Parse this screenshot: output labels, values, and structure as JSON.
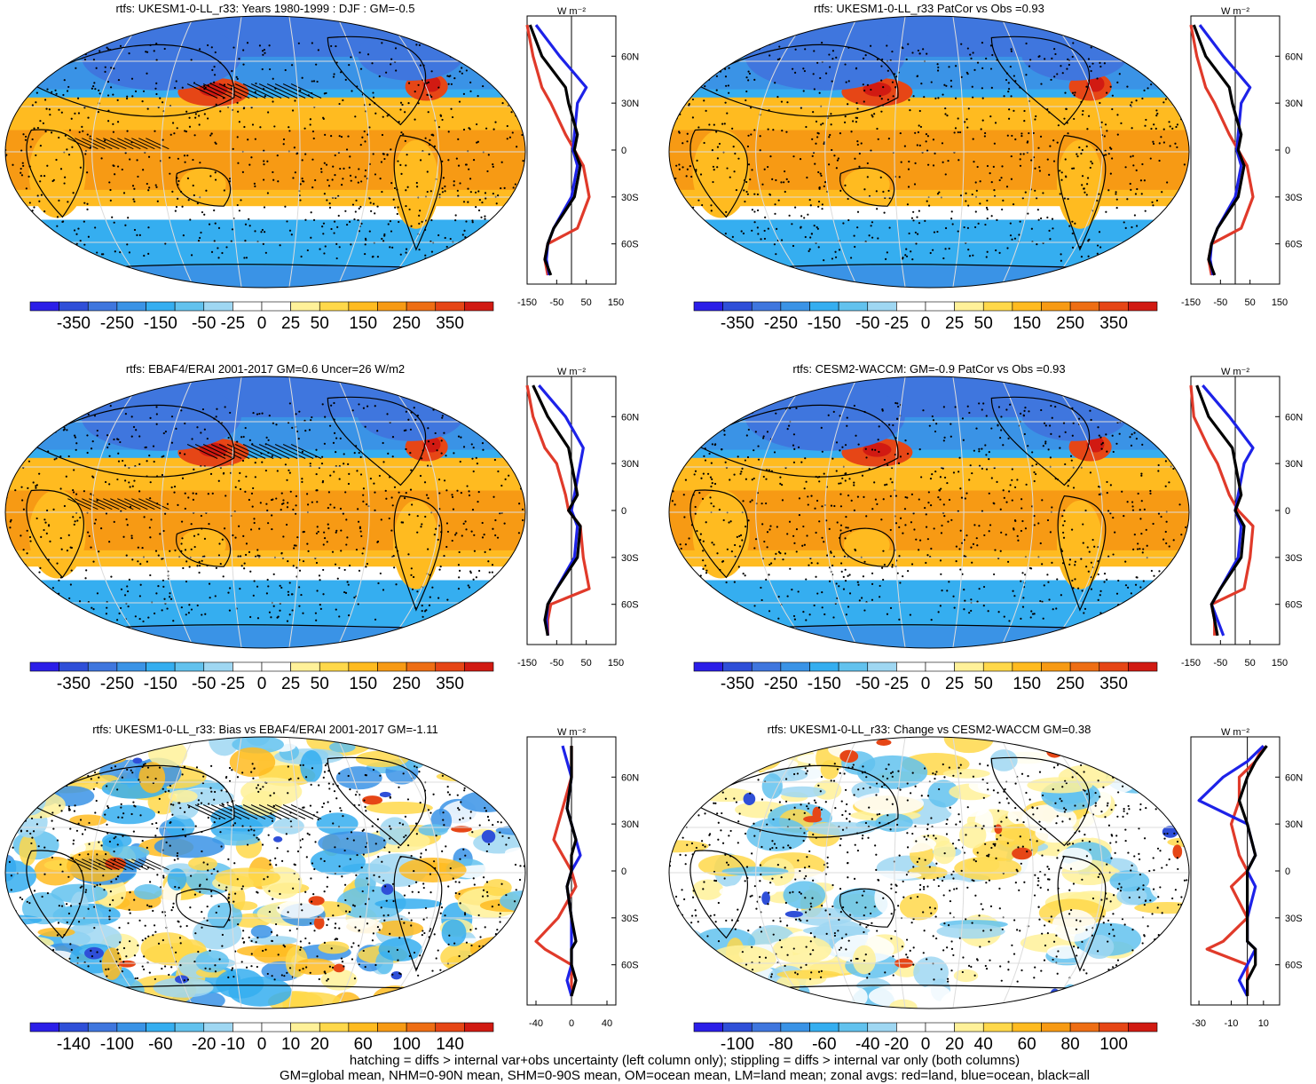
{
  "colors": {
    "scale": [
      "#2b1ee8",
      "#2f4fd8",
      "#3f76de",
      "#3a93e6",
      "#35aef0",
      "#62c2ee",
      "#9fd7f2",
      "#ffffff",
      "#ffffff",
      "#fff199",
      "#ffd84a",
      "#ffbb20",
      "#f79a14",
      "#ee6e14",
      "#e64616",
      "#d11a12"
    ],
    "land": "#e03a2a",
    "ocean": "#1d22e8",
    "all": "#000000"
  },
  "panels": [
    {
      "title": "rtfs: UKESM1-0-LL_r33: Years 1980-1999 : DJF : GM=-0.5",
      "cb_labels": [
        "-350",
        "-250",
        "-150",
        "-50",
        "-25",
        "0",
        "25",
        "50",
        "150",
        "250",
        "350"
      ],
      "zonal_xticks": [
        "-150",
        "-50",
        "50",
        "150"
      ],
      "zonal_xlim": [
        -150,
        150
      ],
      "zonal_yticks": [
        "60N",
        "30N",
        "0",
        "30S",
        "60S"
      ],
      "units": "W m⁻²",
      "hatching": true,
      "style": "mean"
    },
    {
      "title": "rtfs: UKESM1-0-LL_r33 PatCor vs Obs =0.93",
      "cb_labels": [
        "-350",
        "-250",
        "-150",
        "-50",
        "-25",
        "0",
        "25",
        "50",
        "150",
        "250",
        "350"
      ],
      "zonal_xticks": [
        "-150",
        "-50",
        "50",
        "150"
      ],
      "zonal_xlim": [
        -150,
        150
      ],
      "zonal_yticks": [
        "60N",
        "30N",
        "0",
        "30S",
        "60S"
      ],
      "units": "W m⁻²",
      "hatching": false,
      "style": "mean"
    },
    {
      "title": "rtfs: EBAF4/ERAI 2001-2017 GM=0.6 Uncer=26 W/m2",
      "cb_labels": [
        "-350",
        "-250",
        "-150",
        "-50",
        "-25",
        "0",
        "25",
        "50",
        "150",
        "250",
        "350"
      ],
      "zonal_xticks": [
        "-150",
        "-50",
        "50",
        "150"
      ],
      "zonal_xlim": [
        -150,
        150
      ],
      "zonal_yticks": [
        "60N",
        "30N",
        "0",
        "30S",
        "60S"
      ],
      "units": "W m⁻²",
      "hatching": true,
      "style": "mean"
    },
    {
      "title": "rtfs: CESM2-WACCM: GM=-0.9 PatCor vs Obs =0.93",
      "cb_labels": [
        "-350",
        "-250",
        "-150",
        "-50",
        "-25",
        "0",
        "25",
        "50",
        "150",
        "250",
        "350"
      ],
      "zonal_xticks": [
        "-150",
        "-50",
        "50",
        "150"
      ],
      "zonal_xlim": [
        -150,
        150
      ],
      "zonal_yticks": [
        "60N",
        "30N",
        "0",
        "30S",
        "60S"
      ],
      "units": "W m⁻²",
      "hatching": false,
      "style": "mean"
    },
    {
      "title": "rtfs: UKESM1-0-LL_r33: Bias vs EBAF4/ERAI 2001-2017 GM=-1.11",
      "cb_labels": [
        "-140",
        "-100",
        "-60",
        "-20",
        "-10",
        "0",
        "10",
        "20",
        "60",
        "100",
        "140"
      ],
      "zonal_xticks": [
        "-40",
        "0",
        "40"
      ],
      "zonal_xlim": [
        -50,
        50
      ],
      "zonal_yticks": [
        "60N",
        "30N",
        "0",
        "30S",
        "60S"
      ],
      "units": "W m⁻²",
      "hatching": true,
      "style": "diff"
    },
    {
      "title": "rtfs: UKESM1-0-LL_r33: Change vs CESM2-WACCM GM=0.38",
      "cb_labels": [
        "-100",
        "-80",
        "-60",
        "-40",
        "-20",
        "0",
        "20",
        "40",
        "60",
        "80",
        "100"
      ],
      "zonal_xticks": [
        "-30",
        "-10",
        "10"
      ],
      "zonal_xlim": [
        -35,
        20
      ],
      "zonal_yticks": [
        "60N",
        "30N",
        "0",
        "30S",
        "60S"
      ],
      "units": "W m⁻²",
      "hatching": false,
      "style": "change"
    }
  ],
  "footer": {
    "line1": "hatching = diffs > internal var+obs uncertainty (left column only); stippling = diffs > internal var only (both columns)",
    "line2": "GM=global mean, NHM=0-90N mean, SHM=0-90S mean, OM=ocean mean, LM=land mean; zonal avgs: red=land, blue=ocean, black=all"
  },
  "chart_data": [
    {
      "type": "heatmap",
      "title": "rtfs: UKESM1-0-LL_r33: Years 1980-1999 : DJF : GM=-0.5",
      "colorbar": [
        -350,
        -250,
        -150,
        -50,
        -25,
        0,
        25,
        50,
        150,
        250,
        350
      ],
      "zonal_mean": {
        "lat": [
          80,
          60,
          40,
          30,
          10,
          0,
          -10,
          -30,
          -50,
          -60,
          -70,
          -80
        ],
        "all": [
          -140,
          -100,
          -20,
          -10,
          20,
          10,
          30,
          10,
          -60,
          -80,
          -90,
          -70
        ],
        "land": [
          -150,
          -130,
          -100,
          -70,
          -20,
          10,
          40,
          60,
          20,
          -80,
          -90,
          -80
        ],
        "ocean": [
          -120,
          -40,
          50,
          20,
          10,
          5,
          20,
          0,
          -60,
          -80,
          -85,
          -75
        ]
      }
    },
    {
      "type": "heatmap",
      "title": "rtfs: UKESM1-0-LL_r33 PatCor vs Obs =0.93",
      "colorbar": [
        -350,
        -250,
        -150,
        -50,
        -25,
        0,
        25,
        50,
        150,
        250,
        350
      ],
      "zonal_mean": {
        "lat": [
          80,
          60,
          40,
          30,
          10,
          0,
          -10,
          -30,
          -50,
          -60,
          -70,
          -80
        ],
        "all": [
          -140,
          -100,
          -20,
          -10,
          20,
          10,
          30,
          10,
          -60,
          -80,
          -90,
          -70
        ],
        "land": [
          -150,
          -130,
          -100,
          -70,
          -20,
          10,
          40,
          60,
          20,
          -80,
          -90,
          -80
        ],
        "ocean": [
          -120,
          -40,
          50,
          20,
          10,
          5,
          20,
          0,
          -60,
          -80,
          -85,
          -75
        ]
      }
    },
    {
      "type": "heatmap",
      "title": "rtfs: EBAF4/ERAI 2001-2017 GM=0.6 Uncer=26 W/m2",
      "colorbar": [
        -350,
        -250,
        -150,
        -50,
        -25,
        0,
        25,
        50,
        150,
        250,
        350
      ],
      "zonal_mean": {
        "lat": [
          80,
          60,
          40,
          30,
          10,
          0,
          -10,
          -30,
          -50,
          -60,
          -70,
          -80
        ],
        "all": [
          -130,
          -80,
          -10,
          0,
          20,
          -10,
          30,
          20,
          -50,
          -80,
          -90,
          -80
        ],
        "land": [
          -150,
          -130,
          -90,
          -50,
          -20,
          -10,
          30,
          40,
          60,
          -70,
          -80,
          -80
        ],
        "ocean": [
          -110,
          -20,
          40,
          30,
          10,
          0,
          20,
          10,
          -50,
          -80,
          -85,
          -80
        ]
      }
    },
    {
      "type": "heatmap",
      "title": "rtfs: CESM2-WACCM: GM=-0.9 PatCor vs Obs =0.93",
      "colorbar": [
        -350,
        -250,
        -150,
        -50,
        -25,
        0,
        25,
        50,
        150,
        250,
        350
      ],
      "zonal_mean": {
        "lat": [
          80,
          60,
          40,
          30,
          10,
          0,
          -10,
          -30,
          -50,
          -60,
          -70,
          -80
        ],
        "all": [
          -130,
          -90,
          -10,
          0,
          20,
          0,
          30,
          20,
          -50,
          -80,
          -70,
          -60
        ],
        "land": [
          -150,
          -140,
          -90,
          -60,
          -20,
          10,
          60,
          50,
          30,
          -80,
          -70,
          -70
        ],
        "ocean": [
          -110,
          -20,
          60,
          30,
          10,
          0,
          20,
          10,
          -50,
          -80,
          -60,
          -40
        ]
      }
    },
    {
      "type": "heatmap",
      "title": "rtfs: UKESM1-0-LL_r33: Bias vs EBAF4/ERAI 2001-2017 GM=-1.11",
      "colorbar": [
        -140,
        -100,
        -60,
        -20,
        -10,
        0,
        10,
        20,
        60,
        100,
        140
      ],
      "zonal_mean": {
        "lat": [
          80,
          60,
          40,
          20,
          10,
          0,
          -10,
          -30,
          -45,
          -50,
          -60,
          -70,
          -80
        ],
        "all": [
          0,
          0,
          -5,
          5,
          0,
          0,
          -5,
          0,
          5,
          0,
          0,
          5,
          0
        ],
        "land": [
          0,
          0,
          -10,
          -20,
          -10,
          0,
          5,
          -15,
          -40,
          -30,
          0,
          0,
          0
        ],
        "ocean": [
          -10,
          0,
          -5,
          5,
          10,
          0,
          -5,
          0,
          0,
          0,
          0,
          -5,
          0
        ]
      }
    },
    {
      "type": "heatmap",
      "title": "rtfs: UKESM1-0-LL_r33: Change vs CESM2-WACCM GM=0.38",
      "colorbar": [
        -100,
        -80,
        -60,
        -40,
        -20,
        0,
        20,
        40,
        60,
        80,
        100
      ],
      "zonal_mean": {
        "lat": [
          80,
          70,
          60,
          45,
          30,
          10,
          0,
          -10,
          -30,
          -45,
          -50,
          -60,
          -70,
          -80
        ],
        "all": [
          12,
          5,
          0,
          -5,
          0,
          5,
          0,
          0,
          0,
          0,
          5,
          5,
          0,
          0
        ],
        "land": [
          10,
          5,
          -5,
          -5,
          -10,
          -5,
          0,
          -10,
          0,
          -15,
          -25,
          0,
          0,
          0
        ],
        "ocean": [
          10,
          0,
          -15,
          -30,
          0,
          5,
          0,
          5,
          0,
          0,
          5,
          0,
          -5,
          0
        ]
      }
    }
  ]
}
